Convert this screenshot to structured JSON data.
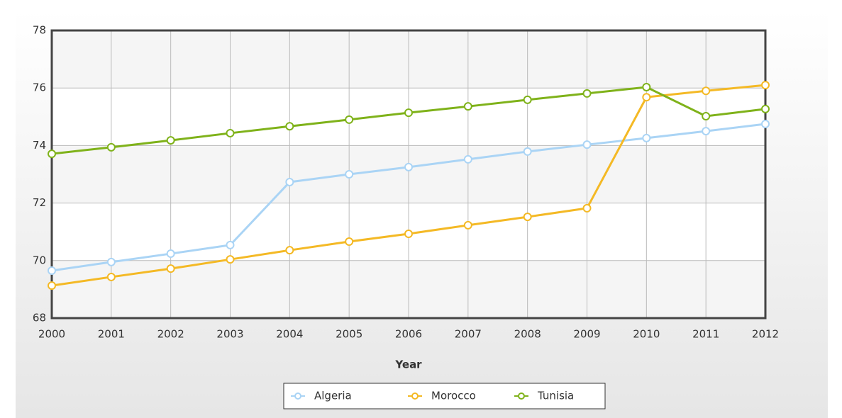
{
  "chart_data": {
    "type": "line",
    "x_label": "Year",
    "x": [
      2000,
      2001,
      2002,
      2003,
      2004,
      2005,
      2006,
      2007,
      2008,
      2009,
      2010,
      2011,
      2012
    ],
    "xlim": [
      2000,
      2012
    ],
    "xticks": [
      2000,
      2001,
      2002,
      2003,
      2004,
      2005,
      2006,
      2007,
      2008,
      2009,
      2010,
      2011,
      2012
    ],
    "ylim": [
      68,
      78
    ],
    "yticks": [
      68,
      70,
      72,
      74,
      76,
      78
    ],
    "grid": true,
    "legend": "bottom",
    "series": [
      {
        "name": "Algeria",
        "color": "#aad4f5",
        "values": [
          69.65,
          69.95,
          70.24,
          70.54,
          72.73,
          73.0,
          73.25,
          73.52,
          73.79,
          74.03,
          74.26,
          74.5,
          74.75
        ]
      },
      {
        "name": "Morocco",
        "color": "#f4b925",
        "values": [
          69.13,
          69.43,
          69.72,
          70.04,
          70.36,
          70.66,
          70.93,
          71.23,
          71.52,
          71.82,
          75.68,
          75.9,
          76.1
        ]
      },
      {
        "name": "Tunisia",
        "color": "#7fb21a",
        "values": [
          73.71,
          73.94,
          74.18,
          74.43,
          74.67,
          74.9,
          75.14,
          75.36,
          75.59,
          75.81,
          76.03,
          75.02,
          75.27
        ]
      }
    ]
  }
}
